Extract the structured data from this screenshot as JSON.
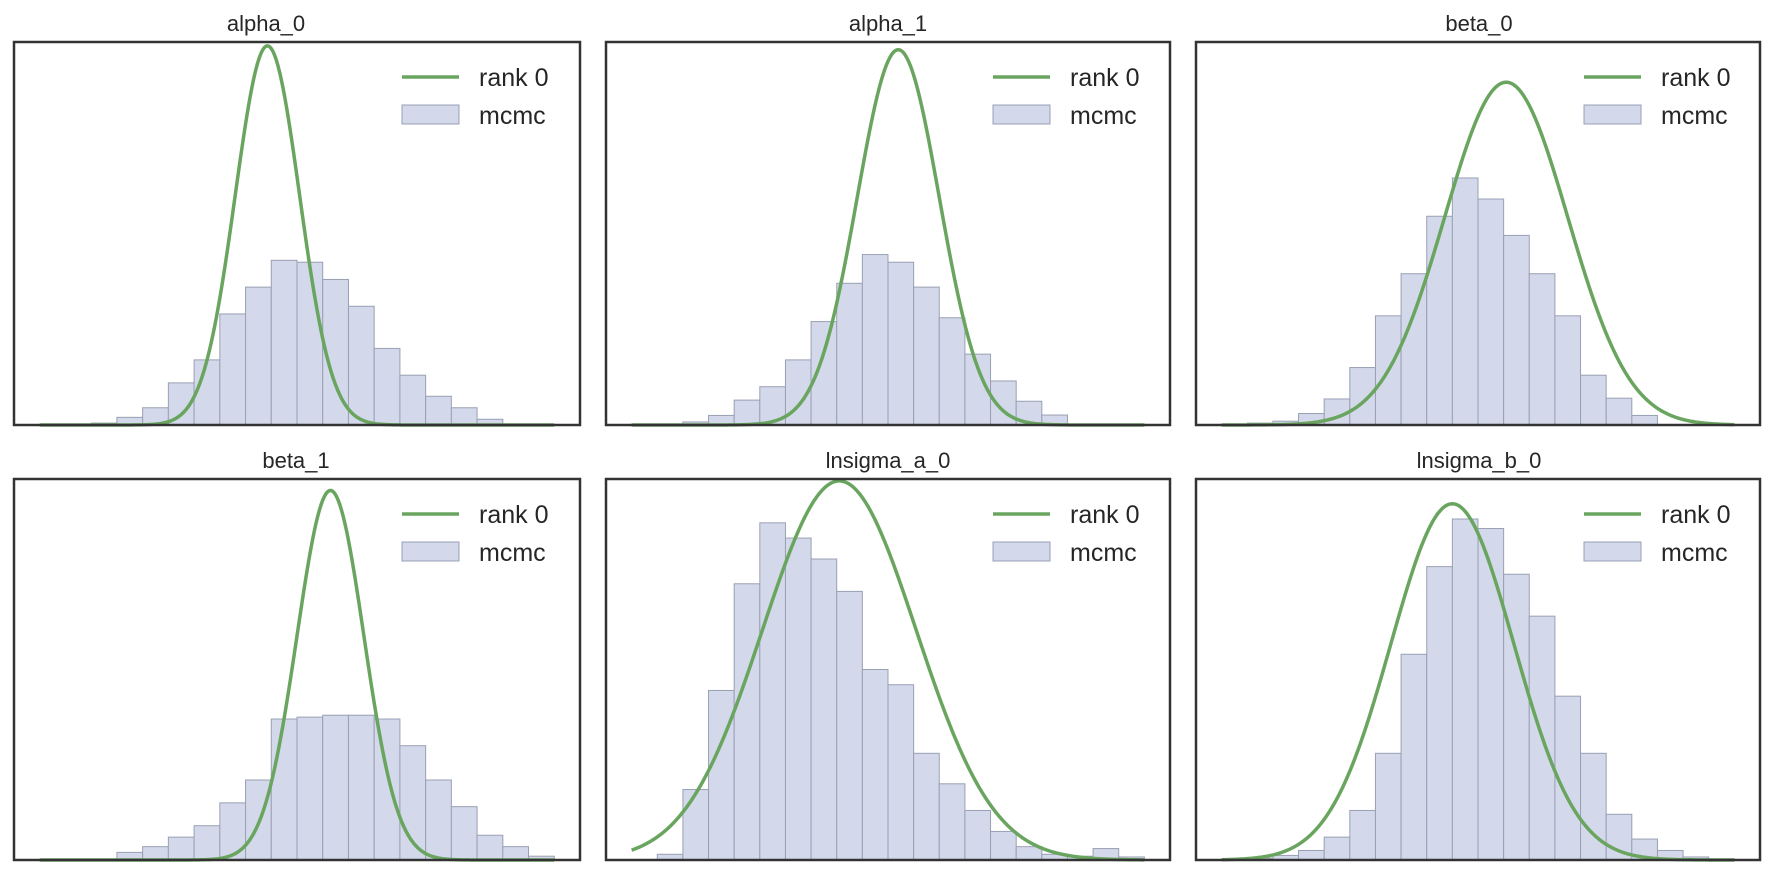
{
  "figure": {
    "background": "#ffffff"
  },
  "style": {
    "line_color": "#6aa560",
    "bar_fill": "#d3d9ea",
    "bar_edge": "#9aa0b4",
    "frame_color": "#333333"
  },
  "chart_data": [
    {
      "type": "bar",
      "title": "alpha_0",
      "xlim": [
        -0.5,
        21.5
      ],
      "ylim": [
        0,
        1.0
      ],
      "bar_values": [
        0.005,
        0.02,
        0.045,
        0.11,
        0.17,
        0.29,
        0.36,
        0.43,
        0.425,
        0.38,
        0.31,
        0.2,
        0.13,
        0.075,
        0.045,
        0.015
      ],
      "bar_start": 2.5,
      "bar_width": 1.0,
      "density_curve": {
        "mean": 9.35,
        "sd": 1.25,
        "peak": 0.99
      },
      "legend": {
        "position": "top-right",
        "line_label": "rank 0",
        "bar_label": "mcmc"
      }
    },
    {
      "type": "bar",
      "title": "alpha_1",
      "xlim": [
        -0.5,
        21.5
      ],
      "ylim": [
        0,
        1.0
      ],
      "bar_values": [
        0.008,
        0.025,
        0.065,
        0.1,
        0.17,
        0.27,
        0.37,
        0.445,
        0.425,
        0.36,
        0.28,
        0.185,
        0.115,
        0.062,
        0.026
      ],
      "bar_start": 2.5,
      "bar_width": 1.0,
      "density_curve": {
        "mean": 10.9,
        "sd": 1.6,
        "peak": 0.98
      },
      "legend": {
        "position": "top-right",
        "line_label": "rank 0",
        "bar_label": "mcmc"
      }
    },
    {
      "type": "bar",
      "title": "beta_0",
      "xlim": [
        -0.5,
        21.5
      ],
      "ylim": [
        0,
        1.0
      ],
      "bar_values": [
        0.005,
        0.01,
        0.03,
        0.068,
        0.15,
        0.285,
        0.395,
        0.545,
        0.645,
        0.59,
        0.495,
        0.395,
        0.285,
        0.13,
        0.07,
        0.025
      ],
      "bar_start": 1.5,
      "bar_width": 1.0,
      "density_curve": {
        "mean": 11.6,
        "sd": 2.4,
        "peak": 0.895
      },
      "legend": {
        "position": "top-right",
        "line_label": "rank 0",
        "bar_label": "mcmc"
      }
    },
    {
      "type": "bar",
      "title": "beta_1",
      "xlim": [
        -0.5,
        21.5
      ],
      "ylim": [
        0,
        1.0
      ],
      "bar_values": [
        0.02,
        0.035,
        0.06,
        0.09,
        0.15,
        0.21,
        0.37,
        0.375,
        0.38,
        0.38,
        0.37,
        0.3,
        0.21,
        0.14,
        0.065,
        0.035,
        0.01
      ],
      "bar_start": 3.5,
      "bar_width": 1.0,
      "density_curve": {
        "mean": 11.8,
        "sd": 1.3,
        "peak": 0.97
      },
      "legend": {
        "position": "top-right",
        "line_label": "rank 0",
        "bar_label": "mcmc"
      }
    },
    {
      "type": "bar",
      "title": "lnsigma_a_0",
      "xlim": [
        -0.5,
        21.5
      ],
      "ylim": [
        0,
        1.0
      ],
      "bar_values": [
        0.015,
        0.185,
        0.445,
        0.725,
        0.885,
        0.845,
        0.79,
        0.705,
        0.5,
        0.46,
        0.28,
        0.2,
        0.13,
        0.075,
        0.035,
        0.015,
        0.01,
        0.03,
        0.008
      ],
      "bar_start": 1.5,
      "bar_width": 1.0,
      "density_curve": {
        "mean": 8.6,
        "sd": 3.0,
        "peak": 0.995
      },
      "legend": {
        "position": "top-right",
        "line_label": "rank 0",
        "bar_label": "mcmc"
      }
    },
    {
      "type": "bar",
      "title": "lnsigma_b_0",
      "xlim": [
        -0.5,
        21.5
      ],
      "ylim": [
        0,
        1.0
      ],
      "bar_values": [
        0.005,
        0.012,
        0.025,
        0.06,
        0.13,
        0.28,
        0.54,
        0.77,
        0.895,
        0.87,
        0.75,
        0.64,
        0.43,
        0.28,
        0.12,
        0.055,
        0.025,
        0.008,
        0.003
      ],
      "bar_start": 1.5,
      "bar_width": 1.0,
      "density_curve": {
        "mean": 9.5,
        "sd": 2.4,
        "peak": 0.935
      },
      "legend": {
        "position": "top-right",
        "line_label": "rank 0",
        "bar_label": "mcmc"
      }
    }
  ]
}
